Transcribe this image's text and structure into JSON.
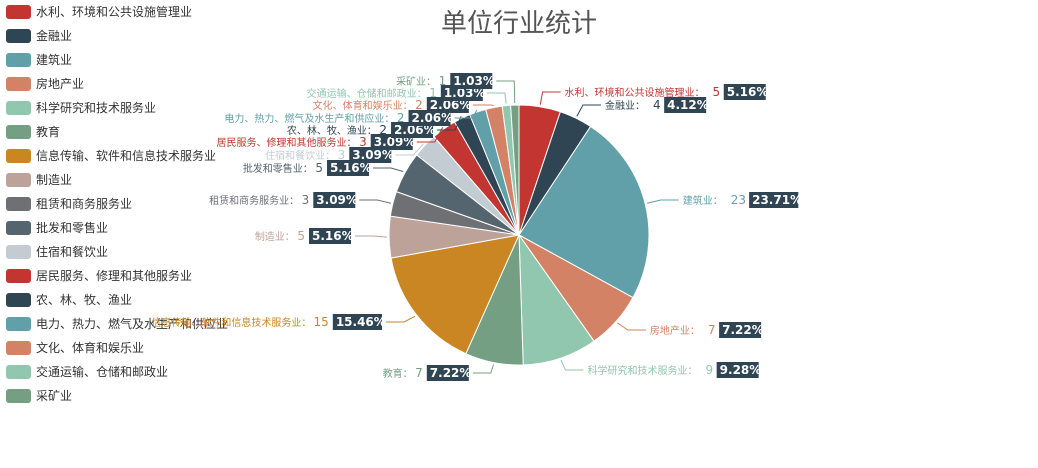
{
  "chart_data": {
    "type": "pie",
    "title": "单位行业统计",
    "legend_position": "left",
    "slices": [
      {
        "name": "水利、环境和公共设施管理业",
        "value": 5,
        "percent": "5.16%",
        "color": "#c23531"
      },
      {
        "name": "金融业",
        "value": 4,
        "percent": "4.12%",
        "color": "#2f4554"
      },
      {
        "name": "建筑业",
        "value": 23,
        "percent": "23.71%",
        "color": "#61a0a8"
      },
      {
        "name": "房地产业",
        "value": 7,
        "percent": "7.22%",
        "color": "#d48265"
      },
      {
        "name": "科学研究和技术服务业",
        "value": 9,
        "percent": "9.28%",
        "color": "#91c7ae"
      },
      {
        "name": "教育",
        "value": 7,
        "percent": "7.22%",
        "color": "#749f83"
      },
      {
        "name": "信息传输、软件和信息技术服务业",
        "value": 15,
        "percent": "15.46%",
        "color": "#ca8622"
      },
      {
        "name": "制造业",
        "value": 5,
        "percent": "5.16%",
        "color": "#bda29a"
      },
      {
        "name": "租赁和商务服务业",
        "value": 3,
        "percent": "3.09%",
        "color": "#6e7074"
      },
      {
        "name": "批发和零售业",
        "value": 5,
        "percent": "5.16%",
        "color": "#546570"
      },
      {
        "name": "住宿和餐饮业",
        "value": 3,
        "percent": "3.09%",
        "color": "#c4ccd3"
      },
      {
        "name": "居民服务、修理和其他服务业",
        "value": 3,
        "percent": "3.09%",
        "color": "#c23531"
      },
      {
        "name": "农、林、牧、渔业",
        "value": 2,
        "percent": "2.06%",
        "color": "#2f4554"
      },
      {
        "name": "电力、热力、燃气及水生产和供应业",
        "value": 2,
        "percent": "2.06%",
        "color": "#61a0a8"
      },
      {
        "name": "文化、体育和娱乐业",
        "value": 2,
        "percent": "2.06%",
        "color": "#d48265"
      },
      {
        "name": "交通运输、仓储和邮政业",
        "value": 1,
        "percent": "1.03%",
        "color": "#91c7ae"
      },
      {
        "name": "采矿业",
        "value": 1,
        "percent": "1.03%",
        "color": "#749f83"
      }
    ]
  }
}
